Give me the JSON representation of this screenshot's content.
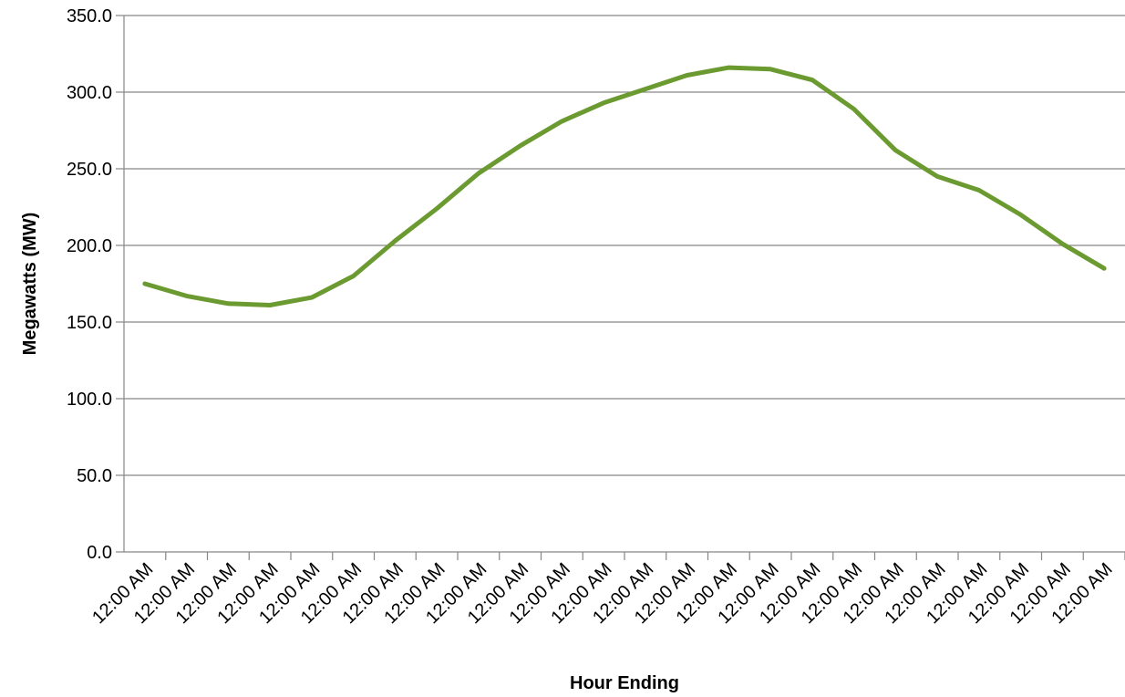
{
  "chart_data": {
    "type": "line",
    "title": "",
    "xlabel": "Hour Ending",
    "ylabel": "Megawatts (MW)",
    "ylim": [
      0,
      350
    ],
    "yticks": [
      "0.0",
      "50.0",
      "100.0",
      "150.0",
      "200.0",
      "250.0",
      "300.0",
      "350.0"
    ],
    "categories": [
      "12:00 AM",
      "12:00 AM",
      "12:00 AM",
      "12:00 AM",
      "12:00 AM",
      "12:00 AM",
      "12:00 AM",
      "12:00 AM",
      "12:00 AM",
      "12:00 AM",
      "12:00 AM",
      "12:00 AM",
      "12:00 AM",
      "12:00 AM",
      "12:00 AM",
      "12:00 AM",
      "12:00 AM",
      "12:00 AM",
      "12:00 AM",
      "12:00 AM",
      "12:00 AM",
      "12:00 AM",
      "12:00 AM",
      "12:00 AM"
    ],
    "series": [
      {
        "values": [
          175,
          167,
          162,
          161,
          166,
          180,
          203,
          224,
          247,
          265,
          281,
          293,
          302,
          311,
          316,
          315,
          308,
          289,
          262,
          245,
          236,
          220,
          201,
          185
        ],
        "color": "#6b9a30"
      }
    ],
    "grid": true,
    "legend": "none"
  }
}
